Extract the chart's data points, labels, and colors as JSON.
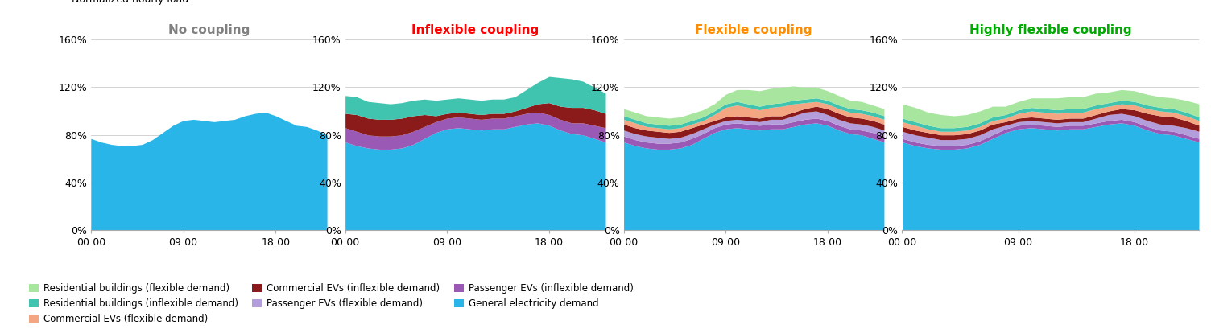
{
  "titles": [
    "No coupling",
    "Inflexible coupling",
    "Flexible coupling",
    "Highly flexible coupling"
  ],
  "title_colors": [
    "#808080",
    "#ff0000",
    "#ff8c00",
    "#00aa00"
  ],
  "ylabel": "Normalized hourly load",
  "ylim": [
    0,
    1.6
  ],
  "yticks": [
    0,
    0.4,
    0.8,
    1.2,
    1.6
  ],
  "ytick_labels": [
    "0%",
    "40%",
    "80%",
    "120%",
    "160%"
  ],
  "xticks": [
    0,
    9,
    18
  ],
  "xtick_labels": [
    "00:00",
    "09:00",
    "18:00"
  ],
  "hours": [
    0,
    1,
    2,
    3,
    4,
    5,
    6,
    7,
    8,
    9,
    10,
    11,
    12,
    13,
    14,
    15,
    16,
    17,
    18,
    19,
    20,
    21,
    22,
    23
  ],
  "colors": {
    "general": "#29b5e8",
    "pass_inflex": "#9b59b6",
    "pass_flex": "#b39ddb",
    "comm_inflex": "#8b1a1a",
    "comm_flex": "#f4a582",
    "res_inflex": "#40c4b0",
    "res_flex": "#a8e6a0"
  },
  "data": {
    "no_coupling": {
      "general": [
        0.77,
        0.74,
        0.72,
        0.71,
        0.71,
        0.72,
        0.76,
        0.82,
        0.88,
        0.92,
        0.93,
        0.92,
        0.91,
        0.92,
        0.93,
        0.96,
        0.98,
        0.99,
        0.96,
        0.92,
        0.88,
        0.87,
        0.84,
        0.8
      ],
      "pass_inflex": [
        0,
        0,
        0,
        0,
        0,
        0,
        0,
        0,
        0,
        0,
        0,
        0,
        0,
        0,
        0,
        0,
        0,
        0,
        0,
        0,
        0,
        0,
        0,
        0
      ],
      "pass_flex": [
        0,
        0,
        0,
        0,
        0,
        0,
        0,
        0,
        0,
        0,
        0,
        0,
        0,
        0,
        0,
        0,
        0,
        0,
        0,
        0,
        0,
        0,
        0,
        0
      ],
      "comm_inflex": [
        0,
        0,
        0,
        0,
        0,
        0,
        0,
        0,
        0,
        0,
        0,
        0,
        0,
        0,
        0,
        0,
        0,
        0,
        0,
        0,
        0,
        0,
        0,
        0
      ],
      "comm_flex": [
        0,
        0,
        0,
        0,
        0,
        0,
        0,
        0,
        0,
        0,
        0,
        0,
        0,
        0,
        0,
        0,
        0,
        0,
        0,
        0,
        0,
        0,
        0,
        0
      ],
      "res_inflex": [
        0,
        0,
        0,
        0,
        0,
        0,
        0,
        0,
        0,
        0,
        0,
        0,
        0,
        0,
        0,
        0,
        0,
        0,
        0,
        0,
        0,
        0,
        0,
        0
      ],
      "res_flex": [
        0,
        0,
        0,
        0,
        0,
        0,
        0,
        0,
        0,
        0,
        0,
        0,
        0,
        0,
        0,
        0,
        0,
        0,
        0,
        0,
        0,
        0,
        0,
        0
      ]
    },
    "inflexible_coupling": {
      "general": [
        0.74,
        0.71,
        0.69,
        0.68,
        0.68,
        0.69,
        0.72,
        0.77,
        0.82,
        0.85,
        0.86,
        0.85,
        0.84,
        0.85,
        0.85,
        0.87,
        0.89,
        0.9,
        0.88,
        0.84,
        0.81,
        0.8,
        0.77,
        0.74
      ],
      "pass_inflex": [
        0.12,
        0.12,
        0.11,
        0.11,
        0.11,
        0.11,
        0.11,
        0.1,
        0.09,
        0.09,
        0.09,
        0.09,
        0.09,
        0.09,
        0.09,
        0.09,
        0.09,
        0.09,
        0.09,
        0.09,
        0.09,
        0.1,
        0.11,
        0.12
      ],
      "pass_flex": [
        0,
        0,
        0,
        0,
        0,
        0,
        0,
        0,
        0,
        0,
        0,
        0,
        0,
        0,
        0,
        0,
        0,
        0,
        0,
        0,
        0,
        0,
        0,
        0
      ],
      "comm_inflex": [
        0.12,
        0.14,
        0.14,
        0.14,
        0.14,
        0.14,
        0.13,
        0.1,
        0.05,
        0.04,
        0.04,
        0.04,
        0.04,
        0.04,
        0.04,
        0.04,
        0.05,
        0.07,
        0.1,
        0.11,
        0.13,
        0.13,
        0.13,
        0.12
      ],
      "comm_flex": [
        0,
        0,
        0,
        0,
        0,
        0,
        0,
        0,
        0,
        0,
        0,
        0,
        0,
        0,
        0,
        0,
        0,
        0,
        0,
        0,
        0,
        0,
        0,
        0
      ],
      "res_inflex": [
        0.15,
        0.15,
        0.14,
        0.14,
        0.13,
        0.13,
        0.13,
        0.13,
        0.13,
        0.12,
        0.12,
        0.12,
        0.12,
        0.12,
        0.12,
        0.12,
        0.15,
        0.18,
        0.22,
        0.24,
        0.24,
        0.22,
        0.19,
        0.17
      ],
      "res_flex": [
        0,
        0,
        0,
        0,
        0,
        0,
        0,
        0,
        0,
        0,
        0,
        0,
        0,
        0,
        0,
        0,
        0,
        0,
        0,
        0,
        0,
        0,
        0,
        0
      ]
    },
    "flexible_coupling": {
      "general": [
        0.74,
        0.71,
        0.69,
        0.68,
        0.68,
        0.69,
        0.72,
        0.77,
        0.82,
        0.85,
        0.86,
        0.85,
        0.84,
        0.85,
        0.85,
        0.87,
        0.89,
        0.9,
        0.88,
        0.84,
        0.81,
        0.8,
        0.77,
        0.74
      ],
      "pass_inflex": [
        0.05,
        0.05,
        0.05,
        0.05,
        0.05,
        0.05,
        0.05,
        0.04,
        0.04,
        0.04,
        0.04,
        0.04,
        0.04,
        0.04,
        0.04,
        0.04,
        0.04,
        0.04,
        0.04,
        0.04,
        0.04,
        0.04,
        0.05,
        0.05
      ],
      "pass_flex": [
        0.05,
        0.05,
        0.05,
        0.05,
        0.04,
        0.04,
        0.04,
        0.04,
        0.03,
        0.03,
        0.03,
        0.03,
        0.03,
        0.04,
        0.04,
        0.05,
        0.06,
        0.06,
        0.05,
        0.05,
        0.05,
        0.05,
        0.05,
        0.05
      ],
      "comm_inflex": [
        0.05,
        0.05,
        0.05,
        0.05,
        0.05,
        0.05,
        0.05,
        0.04,
        0.03,
        0.03,
        0.03,
        0.03,
        0.03,
        0.03,
        0.03,
        0.03,
        0.03,
        0.04,
        0.05,
        0.05,
        0.05,
        0.05,
        0.05,
        0.05
      ],
      "comm_flex": [
        0.04,
        0.04,
        0.03,
        0.03,
        0.03,
        0.03,
        0.03,
        0.03,
        0.05,
        0.08,
        0.09,
        0.08,
        0.07,
        0.07,
        0.08,
        0.07,
        0.05,
        0.04,
        0.04,
        0.04,
        0.04,
        0.04,
        0.04,
        0.04
      ],
      "res_inflex": [
        0.03,
        0.03,
        0.03,
        0.03,
        0.03,
        0.03,
        0.03,
        0.03,
        0.03,
        0.03,
        0.03,
        0.03,
        0.03,
        0.03,
        0.03,
        0.03,
        0.03,
        0.03,
        0.03,
        0.03,
        0.03,
        0.03,
        0.03,
        0.03
      ],
      "res_flex": [
        0.06,
        0.06,
        0.06,
        0.06,
        0.06,
        0.06,
        0.06,
        0.06,
        0.06,
        0.08,
        0.1,
        0.12,
        0.13,
        0.13,
        0.13,
        0.12,
        0.1,
        0.09,
        0.08,
        0.08,
        0.07,
        0.07,
        0.06,
        0.06
      ]
    },
    "highly_flexible_coupling": {
      "general": [
        0.74,
        0.71,
        0.69,
        0.68,
        0.68,
        0.69,
        0.72,
        0.77,
        0.82,
        0.85,
        0.86,
        0.85,
        0.84,
        0.85,
        0.85,
        0.87,
        0.89,
        0.9,
        0.88,
        0.84,
        0.81,
        0.8,
        0.77,
        0.74
      ],
      "pass_inflex": [
        0.03,
        0.03,
        0.03,
        0.03,
        0.03,
        0.03,
        0.03,
        0.03,
        0.03,
        0.03,
        0.03,
        0.03,
        0.03,
        0.03,
        0.03,
        0.03,
        0.03,
        0.03,
        0.03,
        0.03,
        0.03,
        0.03,
        0.03,
        0.03
      ],
      "pass_flex": [
        0.06,
        0.06,
        0.06,
        0.05,
        0.05,
        0.05,
        0.05,
        0.05,
        0.03,
        0.03,
        0.03,
        0.03,
        0.03,
        0.03,
        0.03,
        0.04,
        0.05,
        0.05,
        0.05,
        0.05,
        0.05,
        0.05,
        0.06,
        0.06
      ],
      "comm_inflex": [
        0.04,
        0.04,
        0.04,
        0.04,
        0.04,
        0.04,
        0.04,
        0.04,
        0.03,
        0.03,
        0.03,
        0.03,
        0.03,
        0.03,
        0.03,
        0.03,
        0.03,
        0.04,
        0.05,
        0.06,
        0.07,
        0.07,
        0.06,
        0.05
      ],
      "comm_flex": [
        0.04,
        0.04,
        0.03,
        0.03,
        0.03,
        0.03,
        0.03,
        0.03,
        0.03,
        0.04,
        0.05,
        0.05,
        0.05,
        0.05,
        0.05,
        0.05,
        0.04,
        0.04,
        0.04,
        0.04,
        0.04,
        0.04,
        0.04,
        0.04
      ],
      "res_inflex": [
        0.03,
        0.03,
        0.03,
        0.03,
        0.03,
        0.03,
        0.03,
        0.03,
        0.03,
        0.03,
        0.03,
        0.03,
        0.03,
        0.03,
        0.03,
        0.03,
        0.03,
        0.03,
        0.03,
        0.03,
        0.03,
        0.03,
        0.03,
        0.03
      ],
      "res_flex": [
        0.12,
        0.12,
        0.11,
        0.11,
        0.1,
        0.1,
        0.1,
        0.09,
        0.07,
        0.07,
        0.08,
        0.09,
        0.1,
        0.1,
        0.1,
        0.1,
        0.09,
        0.09,
        0.09,
        0.09,
        0.09,
        0.09,
        0.1,
        0.11
      ]
    }
  },
  "legend_items_row1": [
    {
      "label": "Residential buildings (flexible demand)",
      "color": "#a8e6a0"
    },
    {
      "label": "Residential buildings (inflexible demand)",
      "color": "#40c4b0"
    },
    {
      "label": "Commercial EVs (flexible demand)",
      "color": "#f4a582"
    }
  ],
  "legend_items_row2": [
    {
      "label": "Commercial EVs (inflexible demand)",
      "color": "#8b1a1a"
    },
    {
      "label": "Passenger EVs (flexible demand)",
      "color": "#b39ddb"
    },
    {
      "label": "Passenger EVs (inflexible demand)",
      "color": "#9b59b6"
    }
  ],
  "legend_items_row3": [
    {
      "label": "General electricity demand",
      "color": "#29b5e8"
    }
  ]
}
